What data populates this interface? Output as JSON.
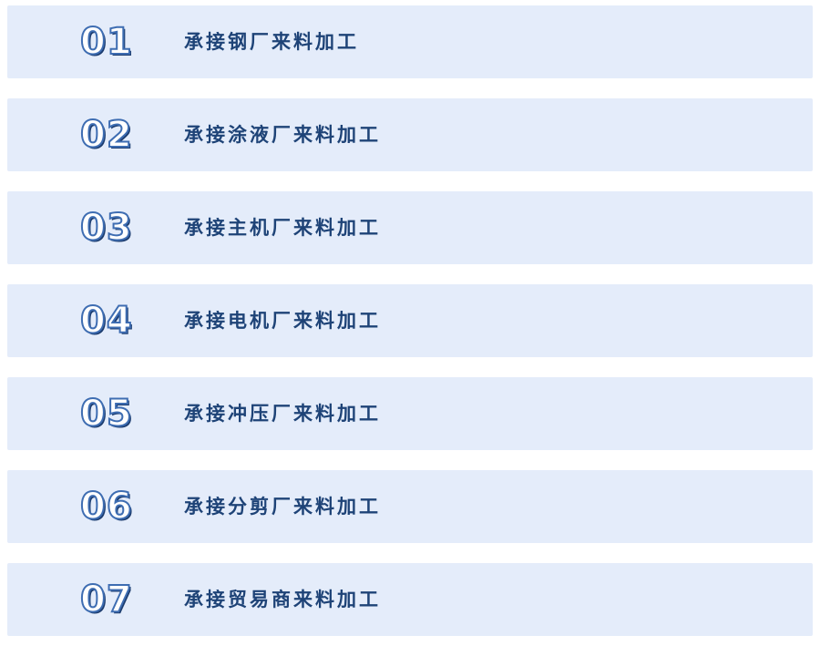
{
  "page": {
    "background_color": "#ffffff",
    "row_background_color": "#e4ecfa",
    "label_color": "#1e4377",
    "number_fill_color": "#ffffff",
    "number_stroke_color": "#3e6db2",
    "number_shadow_color": "#1c3c6e"
  },
  "list": {
    "items": [
      {
        "number": "01",
        "label": "承接钢厂来料加工"
      },
      {
        "number": "02",
        "label": "承接涂液厂来料加工"
      },
      {
        "number": "03",
        "label": "承接主机厂来料加工"
      },
      {
        "number": "04",
        "label": "承接电机厂来料加工"
      },
      {
        "number": "05",
        "label": "承接冲压厂来料加工"
      },
      {
        "number": "06",
        "label": "承接分剪厂来料加工"
      },
      {
        "number": "07",
        "label": "承接贸易商来料加工"
      }
    ]
  }
}
